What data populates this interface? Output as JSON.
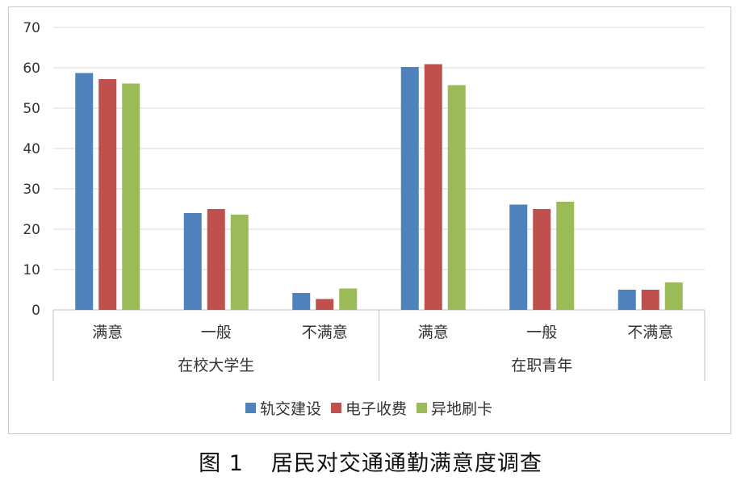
{
  "caption": {
    "number": "图 1",
    "text": "居民对交通通勤满意度调查"
  },
  "chart_data": {
    "type": "bar",
    "groups": [
      {
        "name": "在校大学生",
        "categories": [
          "满意",
          "一般",
          "不满意"
        ]
      },
      {
        "name": "在职青年",
        "categories": [
          "满意",
          "一般",
          "不满意"
        ]
      }
    ],
    "categories": [
      "满意",
      "一般",
      "不满意",
      "满意",
      "一般",
      "不满意"
    ],
    "series": [
      {
        "name": "轨交建设",
        "color": "#4f81bd",
        "values": [
          58.7,
          24.0,
          4.2,
          60.2,
          26.1,
          5.0
        ]
      },
      {
        "name": "电子收费",
        "color": "#c0504d",
        "values": [
          57.2,
          25.0,
          2.7,
          60.9,
          25.0,
          5.0
        ]
      },
      {
        "name": "异地刷卡",
        "color": "#9bbb59",
        "values": [
          56.1,
          23.6,
          5.3,
          55.7,
          26.8,
          6.8
        ]
      }
    ],
    "ylim": [
      0,
      70
    ],
    "yticks": [
      0,
      10,
      20,
      30,
      40,
      50,
      60,
      70
    ],
    "grid": true,
    "legend": "bottom"
  }
}
